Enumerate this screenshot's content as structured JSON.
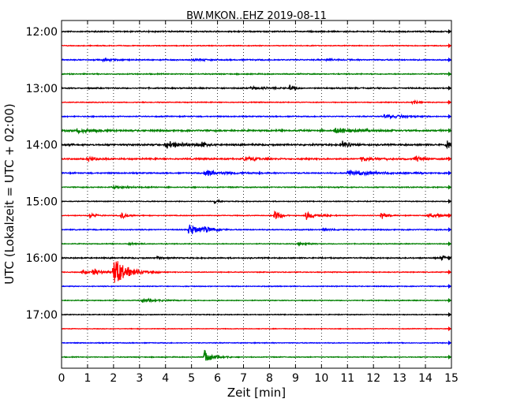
{
  "chart_data": {
    "type": "line",
    "title": "BW.MKON..EHZ 2019-08-11",
    "xlabel": "Zeit  [min]",
    "ylabel": "UTC (Lokalzeit = UTC + 02:00)",
    "xlim": [
      0,
      15
    ],
    "xticks": [
      "0",
      "1",
      "2",
      "3",
      "4",
      "5",
      "6",
      "7",
      "8",
      "9",
      "10",
      "11",
      "12",
      "13",
      "14",
      "15"
    ],
    "ytick_labels": [
      "12:00",
      "13:00",
      "14:00",
      "15:00",
      "16:00",
      "17:00"
    ],
    "grid": "vertical dotted at each minute",
    "trace_start_times": [
      "12:00",
      "12:15",
      "12:30",
      "12:45",
      "13:00",
      "13:15",
      "13:30",
      "13:45",
      "14:00",
      "14:15",
      "14:30",
      "14:45",
      "15:00",
      "15:15",
      "15:30",
      "15:45",
      "16:00",
      "16:15",
      "16:30",
      "16:45",
      "17:00",
      "17:15",
      "17:30",
      "17:45"
    ],
    "trace_colors": [
      "#000000",
      "#ff0000",
      "#0000ff",
      "#008000"
    ],
    "traces": [
      {
        "noise": 0.6,
        "events": []
      },
      {
        "noise": 0.4,
        "events": []
      },
      {
        "noise": 0.6,
        "events": [
          {
            "t": 1.6,
            "amp": 1.4,
            "dur": 0.3
          },
          {
            "t": 5.1,
            "amp": 1.0,
            "dur": 0.3
          },
          {
            "t": 10.2,
            "amp": 1.0,
            "dur": 0.3
          }
        ]
      },
      {
        "noise": 0.5,
        "events": []
      },
      {
        "noise": 0.6,
        "events": [
          {
            "t": 7.3,
            "amp": 1.5,
            "dur": 0.5
          },
          {
            "t": 8.8,
            "amp": 5.0,
            "dur": 0.15
          }
        ]
      },
      {
        "noise": 0.4,
        "events": [
          {
            "t": 13.5,
            "amp": 2.5,
            "dur": 0.15
          }
        ]
      },
      {
        "noise": 0.5,
        "events": [
          {
            "t": 12.4,
            "amp": 2.5,
            "dur": 0.6
          }
        ]
      },
      {
        "noise": 0.8,
        "events": [
          {
            "t": 0.6,
            "amp": 2.2,
            "dur": 0.6
          },
          {
            "t": 10.5,
            "amp": 3.0,
            "dur": 0.8
          }
        ]
      },
      {
        "noise": 0.8,
        "events": [
          {
            "t": 4.0,
            "amp": 3.5,
            "dur": 0.6
          },
          {
            "t": 5.4,
            "amp": 2.5,
            "dur": 0.2
          },
          {
            "t": 10.8,
            "amp": 3.0,
            "dur": 0.3
          },
          {
            "t": 14.8,
            "amp": 3.5,
            "dur": 0.3
          }
        ]
      },
      {
        "noise": 0.7,
        "events": [
          {
            "t": 1.0,
            "amp": 2.5,
            "dur": 0.3
          },
          {
            "t": 7.0,
            "amp": 2.2,
            "dur": 0.6
          },
          {
            "t": 11.5,
            "amp": 1.8,
            "dur": 0.6
          },
          {
            "t": 13.6,
            "amp": 3.0,
            "dur": 0.3
          }
        ]
      },
      {
        "noise": 0.6,
        "events": [
          {
            "t": 5.5,
            "amp": 2.8,
            "dur": 0.8
          },
          {
            "t": 11.0,
            "amp": 2.5,
            "dur": 1.0
          }
        ]
      },
      {
        "noise": 0.5,
        "events": [
          {
            "t": 2.0,
            "amp": 1.2,
            "dur": 0.5
          }
        ]
      },
      {
        "noise": 0.4,
        "events": [
          {
            "t": 5.9,
            "amp": 2.5,
            "dur": 0.1
          }
        ]
      },
      {
        "noise": 0.4,
        "events": [
          {
            "t": 1.1,
            "amp": 2.8,
            "dur": 0.2
          },
          {
            "t": 2.3,
            "amp": 3.5,
            "dur": 0.2
          },
          {
            "t": 8.2,
            "amp": 6.5,
            "dur": 0.2
          },
          {
            "t": 9.4,
            "amp": 4.5,
            "dur": 0.4
          },
          {
            "t": 12.3,
            "amp": 4.0,
            "dur": 0.2
          },
          {
            "t": 14.1,
            "amp": 2.5,
            "dur": 0.4
          }
        ]
      },
      {
        "noise": 0.5,
        "events": [
          {
            "t": 4.9,
            "amp": 5.5,
            "dur": 0.5
          },
          {
            "t": 5.5,
            "amp": 2.0,
            "dur": 0.3
          },
          {
            "t": 10.1,
            "amp": 2.0,
            "dur": 0.2
          }
        ]
      },
      {
        "noise": 0.4,
        "events": [
          {
            "t": 2.6,
            "amp": 1.2,
            "dur": 0.3
          },
          {
            "t": 9.1,
            "amp": 1.4,
            "dur": 0.3
          }
        ]
      },
      {
        "noise": 0.6,
        "events": [
          {
            "t": 3.7,
            "amp": 2.0,
            "dur": 0.2
          },
          {
            "t": 14.6,
            "amp": 3.5,
            "dur": 0.2
          }
        ]
      },
      {
        "noise": 0.4,
        "events": [
          {
            "t": 1.2,
            "amp": 3.5,
            "dur": 0.4
          },
          {
            "t": 2.0,
            "amp": 14.0,
            "dur": 0.6
          },
          {
            "t": 0.8,
            "amp": 1.8,
            "dur": 0.2
          }
        ]
      },
      {
        "noise": 0.4,
        "events": []
      },
      {
        "noise": 0.4,
        "events": [
          {
            "t": 3.1,
            "amp": 2.5,
            "dur": 0.5
          }
        ]
      },
      {
        "noise": 0.4,
        "events": []
      },
      {
        "noise": 0.3,
        "events": []
      },
      {
        "noise": 0.4,
        "events": []
      },
      {
        "noise": 0.4,
        "events": [
          {
            "t": 5.5,
            "amp": 6.5,
            "dur": 0.35
          }
        ]
      }
    ]
  }
}
